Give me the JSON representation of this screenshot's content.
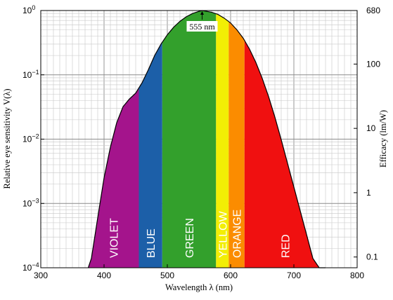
{
  "chart_data": {
    "type": "area",
    "xlabel": "Wavelength λ  (nm)",
    "ylabel": "Relative eye sensitivity  V(λ)",
    "ylabel_right": "Efficacy   (lm/W)",
    "x_scale": "linear",
    "y_scale": "log",
    "xlim": [
      300,
      800
    ],
    "ylim": [
      0.0001,
      1
    ],
    "grid": true,
    "x_ticks": [
      {
        "v": 300,
        "label": "300"
      },
      {
        "v": 400,
        "label": "400"
      },
      {
        "v": 500,
        "label": "500"
      },
      {
        "v": 600,
        "label": "600"
      },
      {
        "v": 700,
        "label": "700"
      },
      {
        "v": 800,
        "label": "800"
      }
    ],
    "y_ticks_left": [
      {
        "v": 1,
        "label": "10",
        "exp": "0"
      },
      {
        "v": 0.1,
        "label": "10",
        "exp": "−1"
      },
      {
        "v": 0.01,
        "label": "10",
        "exp": "−2"
      },
      {
        "v": 0.001,
        "label": "10",
        "exp": "−3"
      },
      {
        "v": 0.0001,
        "label": "10",
        "exp": "−4"
      }
    ],
    "y_ticks_right": [
      {
        "v": 1,
        "label": "680"
      },
      {
        "v": 0.147,
        "label": "100"
      },
      {
        "v": 0.0147,
        "label": "10"
      },
      {
        "v": 0.00147,
        "label": "1"
      },
      {
        "v": 0.000147,
        "label": "0.1"
      }
    ],
    "curve": {
      "x": [
        375,
        380,
        390,
        400,
        410,
        420,
        430,
        440,
        450,
        460,
        470,
        480,
        490,
        500,
        510,
        520,
        530,
        540,
        550,
        555,
        560,
        570,
        580,
        590,
        600,
        610,
        620,
        630,
        640,
        650,
        660,
        670,
        680,
        690,
        700,
        710,
        720,
        730,
        740,
        750
      ],
      "y": [
        0.0001,
        0.00014,
        0.0006,
        0.0025,
        0.0075,
        0.018,
        0.032,
        0.042,
        0.052,
        0.075,
        0.12,
        0.2,
        0.3,
        0.42,
        0.55,
        0.68,
        0.8,
        0.9,
        0.97,
        1.0,
        0.98,
        0.94,
        0.87,
        0.76,
        0.64,
        0.5,
        0.37,
        0.25,
        0.155,
        0.088,
        0.046,
        0.022,
        0.0098,
        0.0042,
        0.0018,
        0.00077,
        0.00033,
        0.00014,
        8e-05,
        4e-05
      ]
    },
    "bands": [
      {
        "name": "VIOLET",
        "from": 375,
        "to": 455,
        "color": "#a4148c"
      },
      {
        "name": "BLUE",
        "from": 455,
        "to": 492,
        "color": "#1c5fa8"
      },
      {
        "name": "GREEN",
        "from": 492,
        "to": 577,
        "color": "#33a02c"
      },
      {
        "name": "YELLOW",
        "from": 577,
        "to": 597,
        "color": "#f2ee05"
      },
      {
        "name": "ORANGE",
        "from": 597,
        "to": 622,
        "color": "#fb8c00"
      },
      {
        "name": "RED",
        "from": 622,
        "to": 750,
        "color": "#f01010"
      }
    ],
    "annotation": {
      "text": "555 nm",
      "x": 555,
      "y": 1
    }
  }
}
